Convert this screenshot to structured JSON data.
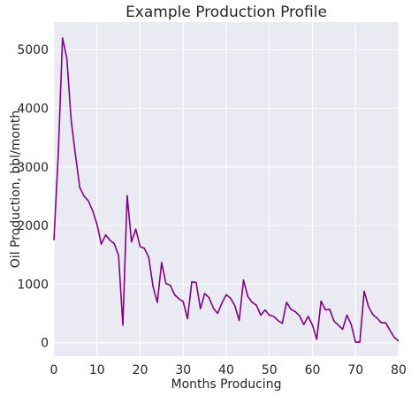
{
  "chart_data": {
    "type": "line",
    "title": "Example Production Profile",
    "xlabel": "Months Producing",
    "ylabel": "Oil Production, bbl/month",
    "xlim": [
      0,
      80
    ],
    "ylim": [
      -230,
      5470
    ],
    "xticks": [
      0,
      10,
      20,
      30,
      40,
      50,
      60,
      70,
      80
    ],
    "yticks": [
      0,
      1000,
      2000,
      3000,
      4000,
      5000
    ],
    "grid": true,
    "legend": "none",
    "colors": {
      "line": "#800080",
      "plot_background": "#eaeaf2",
      "grid": "#ffffff"
    },
    "series": [
      {
        "x": [
          0,
          1,
          2,
          3,
          4,
          5,
          6,
          7,
          8,
          9,
          10,
          11,
          12,
          13,
          14,
          15,
          16,
          17,
          18,
          19,
          20,
          21,
          22,
          23,
          24,
          25,
          26,
          27,
          28,
          29,
          30,
          31,
          32,
          33,
          34,
          35,
          36,
          37,
          38,
          39,
          40,
          41,
          42,
          43,
          44,
          45,
          46,
          47,
          48,
          49,
          50,
          51,
          52,
          53,
          54,
          55,
          56,
          57,
          58,
          59,
          60,
          61,
          62,
          63,
          64,
          65,
          66,
          67,
          68,
          69,
          70,
          71,
          72,
          73,
          74,
          75,
          76,
          77,
          78,
          79,
          80
        ],
        "values": [
          1750,
          3200,
          5200,
          4850,
          3800,
          3200,
          2650,
          2500,
          2420,
          2250,
          2020,
          1680,
          1840,
          1750,
          1690,
          1490,
          300,
          2510,
          1720,
          1940,
          1640,
          1610,
          1460,
          960,
          690,
          1370,
          1010,
          980,
          820,
          750,
          700,
          410,
          1040,
          1030,
          580,
          840,
          770,
          590,
          500,
          680,
          820,
          760,
          630,
          380,
          1070,
          790,
          690,
          640,
          470,
          560,
          470,
          450,
          380,
          330,
          690,
          570,
          530,
          460,
          310,
          450,
          300,
          60,
          710,
          560,
          570,
          370,
          300,
          230,
          470,
          310,
          10,
          10,
          880,
          620,
          480,
          420,
          340,
          340,
          210,
          90,
          30
        ]
      }
    ]
  }
}
